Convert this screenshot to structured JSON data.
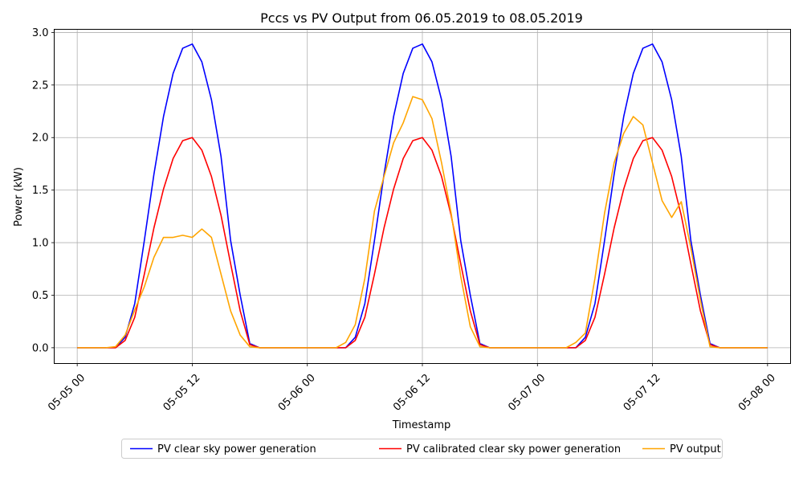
{
  "chart_data": {
    "type": "line",
    "title": "Pccs vs PV Output from 06.05.2019 to 08.05.2019",
    "xlabel": "Timestamp",
    "ylabel": "Power (kW)",
    "xlim": [
      "2019-05-04 21:36",
      "2019-05-08 02:24"
    ],
    "ylim": [
      -0.15,
      3.03
    ],
    "grid": true,
    "legend_position": "bottom-center",
    "x_ticks": [
      {
        "value": "2019-05-05 00:00",
        "label": "05-05 00"
      },
      {
        "value": "2019-05-05 12:00",
        "label": "05-05 12"
      },
      {
        "value": "2019-05-06 00:00",
        "label": "05-06 00"
      },
      {
        "value": "2019-05-06 12:00",
        "label": "05-06 12"
      },
      {
        "value": "2019-05-07 00:00",
        "label": "05-07 00"
      },
      {
        "value": "2019-05-07 12:00",
        "label": "05-07 12"
      },
      {
        "value": "2019-05-08 00:00",
        "label": "05-08 00"
      }
    ],
    "y_ticks": [
      {
        "value": 0.0,
        "label": "0.0"
      },
      {
        "value": 0.5,
        "label": "0.5"
      },
      {
        "value": 1.0,
        "label": "1.0"
      },
      {
        "value": 1.5,
        "label": "1.5"
      },
      {
        "value": 2.0,
        "label": "2.0"
      },
      {
        "value": 2.5,
        "label": "2.5"
      },
      {
        "value": 3.0,
        "label": "3.0"
      }
    ],
    "series": [
      {
        "name": "PV clear sky power generation",
        "color": "#0000ff",
        "x": [
          "2019-05-05 00:00",
          "2019-05-05 03:00",
          "2019-05-05 04:00",
          "2019-05-05 05:00",
          "2019-05-05 06:00",
          "2019-05-05 07:00",
          "2019-05-05 08:00",
          "2019-05-05 09:00",
          "2019-05-05 10:00",
          "2019-05-05 11:00",
          "2019-05-05 12:00",
          "2019-05-05 13:00",
          "2019-05-05 14:00",
          "2019-05-05 15:00",
          "2019-05-05 16:00",
          "2019-05-05 17:00",
          "2019-05-05 18:00",
          "2019-05-05 19:00",
          "2019-05-05 20:00",
          "2019-05-06 03:00",
          "2019-05-06 04:00",
          "2019-05-06 05:00",
          "2019-05-06 06:00",
          "2019-05-06 07:00",
          "2019-05-06 08:00",
          "2019-05-06 09:00",
          "2019-05-06 10:00",
          "2019-05-06 11:00",
          "2019-05-06 12:00",
          "2019-05-06 13:00",
          "2019-05-06 14:00",
          "2019-05-06 15:00",
          "2019-05-06 16:00",
          "2019-05-06 17:00",
          "2019-05-06 18:00",
          "2019-05-06 19:00",
          "2019-05-06 20:00",
          "2019-05-07 03:00",
          "2019-05-07 04:00",
          "2019-05-07 05:00",
          "2019-05-07 06:00",
          "2019-05-07 07:00",
          "2019-05-07 08:00",
          "2019-05-07 09:00",
          "2019-05-07 10:00",
          "2019-05-07 11:00",
          "2019-05-07 12:00",
          "2019-05-07 13:00",
          "2019-05-07 14:00",
          "2019-05-07 15:00",
          "2019-05-07 16:00",
          "2019-05-07 17:00",
          "2019-05-07 18:00",
          "2019-05-07 19:00",
          "2019-05-07 20:00",
          "2019-05-08 00:00"
        ],
        "values": [
          0,
          0,
          0,
          0.1,
          0.42,
          1.02,
          1.65,
          2.2,
          2.61,
          2.85,
          2.89,
          2.72,
          2.36,
          1.82,
          1.02,
          0.5,
          0.04,
          0,
          0,
          0,
          0,
          0.1,
          0.42,
          1.02,
          1.65,
          2.2,
          2.61,
          2.85,
          2.89,
          2.72,
          2.36,
          1.82,
          1.02,
          0.5,
          0.04,
          0,
          0,
          0,
          0,
          0.1,
          0.42,
          1.02,
          1.65,
          2.2,
          2.61,
          2.85,
          2.89,
          2.72,
          2.36,
          1.82,
          1.02,
          0.5,
          0.04,
          0,
          0,
          0
        ]
      },
      {
        "name": "PV calibrated clear sky power generation",
        "color": "#ff0000",
        "x": [
          "2019-05-05 00:00",
          "2019-05-05 03:00",
          "2019-05-05 04:00",
          "2019-05-05 05:00",
          "2019-05-05 06:00",
          "2019-05-05 07:00",
          "2019-05-05 08:00",
          "2019-05-05 09:00",
          "2019-05-05 10:00",
          "2019-05-05 11:00",
          "2019-05-05 12:00",
          "2019-05-05 13:00",
          "2019-05-05 14:00",
          "2019-05-05 15:00",
          "2019-05-05 16:00",
          "2019-05-05 17:00",
          "2019-05-05 18:00",
          "2019-05-05 19:00",
          "2019-05-05 20:00",
          "2019-05-06 03:00",
          "2019-05-06 04:00",
          "2019-05-06 05:00",
          "2019-05-06 06:00",
          "2019-05-06 07:00",
          "2019-05-06 08:00",
          "2019-05-06 09:00",
          "2019-05-06 10:00",
          "2019-05-06 11:00",
          "2019-05-06 12:00",
          "2019-05-06 13:00",
          "2019-05-06 14:00",
          "2019-05-06 15:00",
          "2019-05-06 16:00",
          "2019-05-06 17:00",
          "2019-05-06 18:00",
          "2019-05-06 19:00",
          "2019-05-06 20:00",
          "2019-05-07 03:00",
          "2019-05-07 04:00",
          "2019-05-07 05:00",
          "2019-05-07 06:00",
          "2019-05-07 07:00",
          "2019-05-07 08:00",
          "2019-05-07 09:00",
          "2019-05-07 10:00",
          "2019-05-07 11:00",
          "2019-05-07 12:00",
          "2019-05-07 13:00",
          "2019-05-07 14:00",
          "2019-05-07 15:00",
          "2019-05-07 16:00",
          "2019-05-07 17:00",
          "2019-05-07 18:00",
          "2019-05-07 19:00",
          "2019-05-07 20:00",
          "2019-05-08 00:00"
        ],
        "values": [
          0,
          0,
          0,
          0.07,
          0.29,
          0.7,
          1.14,
          1.51,
          1.8,
          1.97,
          2.0,
          1.88,
          1.63,
          1.26,
          0.8,
          0.35,
          0.03,
          0,
          0,
          0,
          0,
          0.07,
          0.29,
          0.7,
          1.14,
          1.51,
          1.8,
          1.97,
          2.0,
          1.88,
          1.63,
          1.26,
          0.8,
          0.35,
          0.03,
          0,
          0,
          0,
          0,
          0.07,
          0.29,
          0.7,
          1.14,
          1.51,
          1.8,
          1.97,
          2.0,
          1.88,
          1.63,
          1.26,
          0.8,
          0.35,
          0.03,
          0,
          0,
          0
        ]
      },
      {
        "name": "PV output",
        "color": "#ffa500",
        "x": [
          "2019-05-05 00:00",
          "2019-05-05 03:00",
          "2019-05-05 04:00",
          "2019-05-05 05:00",
          "2019-05-05 06:00",
          "2019-05-05 07:00",
          "2019-05-05 08:00",
          "2019-05-05 09:00",
          "2019-05-05 10:00",
          "2019-05-05 11:00",
          "2019-05-05 12:00",
          "2019-05-05 13:00",
          "2019-05-05 14:00",
          "2019-05-05 15:00",
          "2019-05-05 16:00",
          "2019-05-05 17:00",
          "2019-05-05 18:00",
          "2019-05-05 19:00",
          "2019-05-05 20:00",
          "2019-05-06 03:00",
          "2019-05-06 04:00",
          "2019-05-06 05:00",
          "2019-05-06 06:00",
          "2019-05-06 07:00",
          "2019-05-06 08:00",
          "2019-05-06 09:00",
          "2019-05-06 10:00",
          "2019-05-06 11:00",
          "2019-05-06 12:00",
          "2019-05-06 13:00",
          "2019-05-06 14:00",
          "2019-05-06 15:00",
          "2019-05-06 16:00",
          "2019-05-06 17:00",
          "2019-05-06 18:00",
          "2019-05-06 19:00",
          "2019-05-06 20:00",
          "2019-05-07 03:00",
          "2019-05-07 04:00",
          "2019-05-07 05:00",
          "2019-05-07 06:00",
          "2019-05-07 07:00",
          "2019-05-07 08:00",
          "2019-05-07 09:00",
          "2019-05-07 10:00",
          "2019-05-07 11:00",
          "2019-05-07 12:00",
          "2019-05-07 13:00",
          "2019-05-07 14:00",
          "2019-05-07 15:00",
          "2019-05-07 16:00",
          "2019-05-07 17:00",
          "2019-05-07 18:00",
          "2019-05-07 19:00",
          "2019-05-07 20:00",
          "2019-05-08 00:00"
        ],
        "values": [
          0,
          0,
          0.01,
          0.12,
          0.36,
          0.58,
          0.86,
          1.05,
          1.05,
          1.07,
          1.05,
          1.13,
          1.05,
          0.7,
          0.35,
          0.12,
          0.01,
          0,
          0,
          0,
          0.05,
          0.22,
          0.66,
          1.3,
          1.63,
          1.95,
          2.14,
          2.39,
          2.36,
          2.18,
          1.76,
          1.28,
          0.68,
          0.2,
          0.01,
          0,
          0,
          0,
          0.05,
          0.14,
          0.66,
          1.28,
          1.76,
          2.04,
          2.2,
          2.12,
          1.76,
          1.4,
          1.24,
          1.39,
          0.95,
          0.45,
          0.01,
          0,
          0,
          0
        ]
      }
    ]
  }
}
